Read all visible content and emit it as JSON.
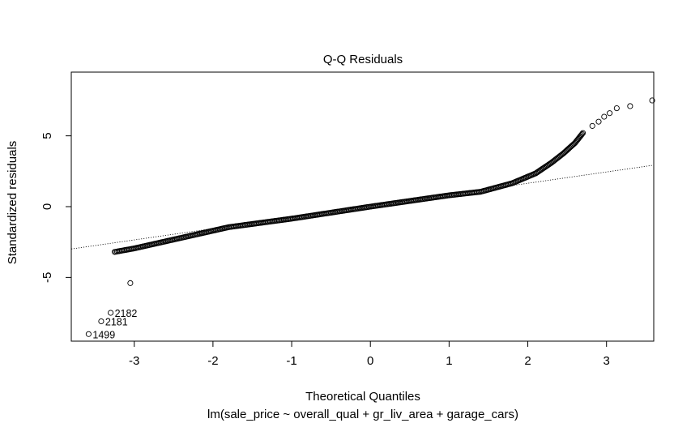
{
  "chart_data": {
    "type": "scatter",
    "title": "Q-Q Residuals",
    "xlabel": "Theoretical Quantiles",
    "subtitle": "lm(sale_price ~ overall_qual + gr_liv_area + garage_cars)",
    "ylabel": "Standardized residuals",
    "xlim": [
      -3.8,
      3.6
    ],
    "ylim": [
      -9.5,
      9.5
    ],
    "x_ticks": [
      -3,
      -2,
      -1,
      0,
      1,
      2,
      3
    ],
    "y_ticks": [
      -5,
      0,
      5
    ],
    "x_tick_labels": [
      "-3",
      "-2",
      "-1",
      "0",
      "1",
      "2",
      "3"
    ],
    "y_tick_labels": [
      "-5",
      "0",
      "5"
    ],
    "grid": false,
    "reference_line": {
      "intercept": 0.05,
      "slope": 0.8,
      "style": "dotted"
    },
    "body_curve": [
      [
        -3.25,
        -3.2
      ],
      [
        -3.0,
        -2.95
      ],
      [
        -2.6,
        -2.45
      ],
      [
        -2.2,
        -1.95
      ],
      [
        -1.8,
        -1.45
      ],
      [
        -1.0,
        -0.85
      ],
      [
        0.0,
        0.0
      ],
      [
        1.0,
        0.8
      ],
      [
        1.4,
        1.05
      ],
      [
        1.8,
        1.65
      ],
      [
        2.1,
        2.35
      ],
      [
        2.3,
        3.1
      ],
      [
        2.45,
        3.75
      ],
      [
        2.6,
        4.5
      ],
      [
        2.7,
        5.2
      ]
    ],
    "tail_points": [
      {
        "x": -3.58,
        "y": -9.0
      },
      {
        "x": -3.42,
        "y": -8.1
      },
      {
        "x": -3.3,
        "y": -7.5
      },
      {
        "x": -3.05,
        "y": -5.4
      },
      {
        "x": 2.82,
        "y": 5.7
      },
      {
        "x": 2.9,
        "y": 6.0
      },
      {
        "x": 2.97,
        "y": 6.35
      },
      {
        "x": 3.04,
        "y": 6.6
      },
      {
        "x": 3.13,
        "y": 6.95
      },
      {
        "x": 3.3,
        "y": 7.1
      },
      {
        "x": 3.58,
        "y": 7.5
      }
    ],
    "point_labels": [
      {
        "text": "1499",
        "x": -3.58,
        "y": -9.0
      },
      {
        "text": "2181",
        "x": -3.42,
        "y": -8.1
      },
      {
        "text": "2182",
        "x": -3.3,
        "y": -7.5
      }
    ]
  }
}
